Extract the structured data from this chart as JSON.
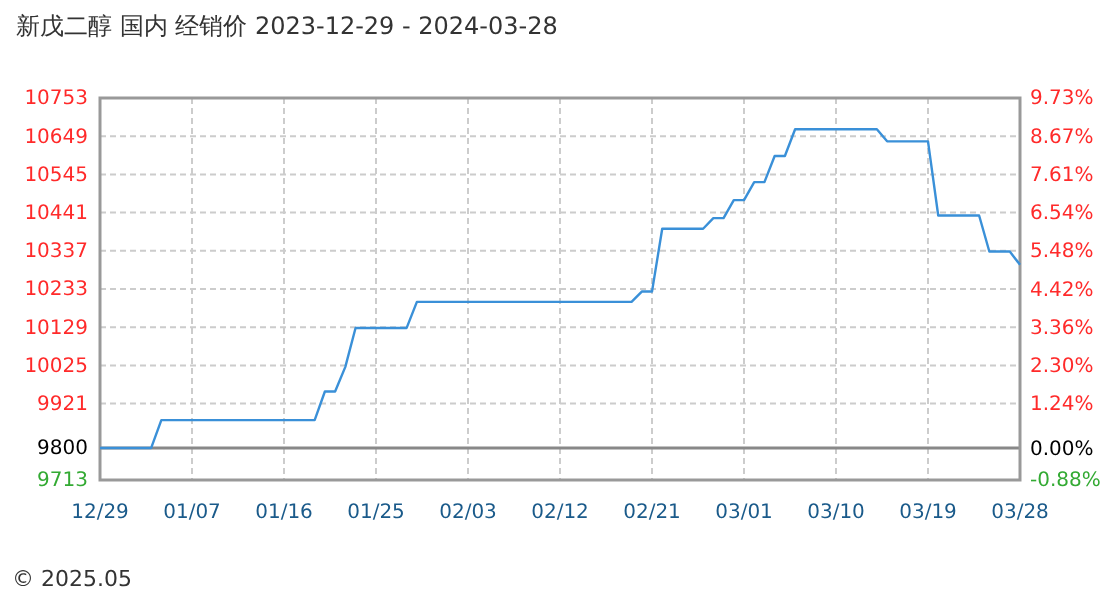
{
  "chart_data": {
    "type": "line",
    "title": "新戊二醇 国内 经销价 2023-12-29 - 2024-03-28",
    "x": [
      "2023-12-29",
      "2024-01-03",
      "2024-01-04",
      "2024-01-19",
      "2024-01-20",
      "2024-01-21",
      "2024-01-22",
      "2024-01-23",
      "2024-01-28",
      "2024-01-29",
      "2024-02-19",
      "2024-02-20",
      "2024-02-21",
      "2024-02-22",
      "2024-02-26",
      "2024-02-27",
      "2024-02-28",
      "2024-02-29",
      "2024-03-01",
      "2024-03-02",
      "2024-03-03",
      "2024-03-04",
      "2024-03-05",
      "2024-03-06",
      "2024-03-14",
      "2024-03-15",
      "2024-03-19",
      "2024-03-20",
      "2024-03-24",
      "2024-03-25",
      "2024-03-27",
      "2024-03-28"
    ],
    "series": [
      {
        "color": "#3a90d8",
        "values": [
          9800,
          9800,
          9876,
          9876,
          9954,
          9954,
          10021,
          10127,
          10127,
          10198,
          10198,
          10226,
          10226,
          10397,
          10397,
          10426,
          10426,
          10475,
          10475,
          10524,
          10524,
          10595,
          10595,
          10668,
          10668,
          10635,
          10635,
          10433,
          10433,
          10335,
          10335,
          10299
        ]
      }
    ],
    "xlim": [
      "2023-12-29",
      "2024-03-28"
    ],
    "xticks": [
      {
        "value": "2023-12-29",
        "label": "12/29"
      },
      {
        "value": "2024-01-07",
        "label": "01/07"
      },
      {
        "value": "2024-01-16",
        "label": "01/16"
      },
      {
        "value": "2024-01-25",
        "label": "01/25"
      },
      {
        "value": "2024-02-03",
        "label": "02/03"
      },
      {
        "value": "2024-02-12",
        "label": "02/12"
      },
      {
        "value": "2024-02-21",
        "label": "02/21"
      },
      {
        "value": "2024-03-01",
        "label": "03/01"
      },
      {
        "value": "2024-03-10",
        "label": "03/10"
      },
      {
        "value": "2024-03-19",
        "label": "03/19"
      },
      {
        "value": "2024-03-28",
        "label": "03/28"
      }
    ],
    "ylim": [
      9713,
      10753
    ],
    "yticks": [
      9713,
      9800,
      9921,
      10025,
      10129,
      10233,
      10337,
      10441,
      10545,
      10649,
      10753
    ],
    "y2lim": [
      -0.88,
      9.73
    ],
    "y2ticks": [
      {
        "value": -0.88,
        "label": "-0.88%"
      },
      {
        "value": 0,
        "label": "0.00%"
      },
      {
        "value": 1.24,
        "label": "1.24%"
      },
      {
        "value": 2.3,
        "label": "2.30%"
      },
      {
        "value": 3.36,
        "label": "3.36%"
      },
      {
        "value": 4.42,
        "label": "4.42%"
      },
      {
        "value": 5.48,
        "label": "5.48%"
      },
      {
        "value": 6.54,
        "label": "6.54%"
      },
      {
        "value": 7.61,
        "label": "7.61%"
      },
      {
        "value": 8.67,
        "label": "8.67%"
      },
      {
        "value": 9.73,
        "label": "9.73%"
      }
    ],
    "ref_lines": [
      {
        "axis": "y",
        "value": 9800,
        "color": "#888888"
      }
    ],
    "grid": true,
    "marker": "none",
    "line_style": "solid",
    "annotations": [
      "© 2025.05"
    ]
  }
}
